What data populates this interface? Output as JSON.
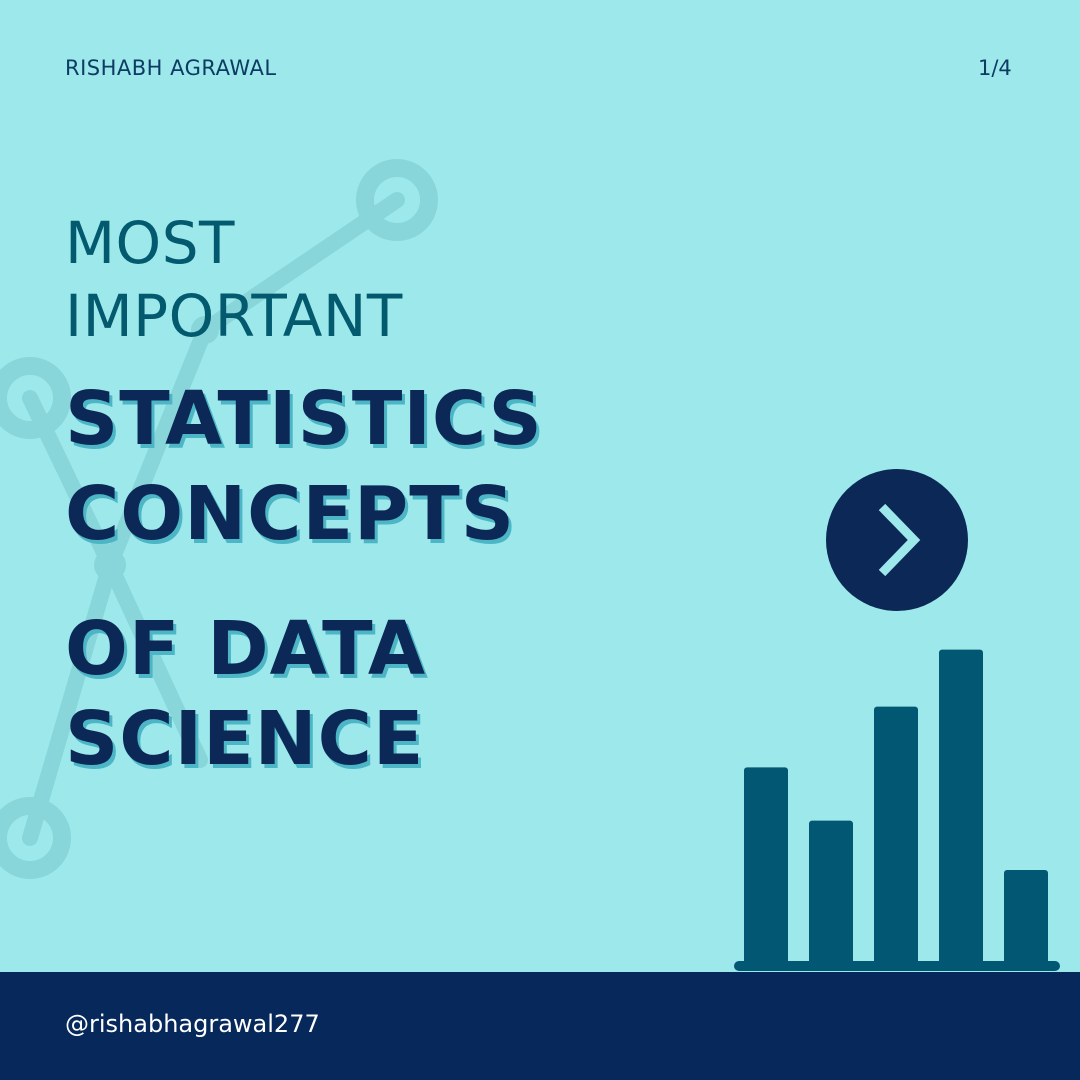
{
  "header": {
    "author": "RISHABH AGRAWAL",
    "page_counter": "1/4"
  },
  "title": {
    "line1": "MOST",
    "line2": "IMPORTANT",
    "line3": "STATISTICS",
    "line4": "CONCEPTS",
    "line5": "OF DATA",
    "line6": "SCIENCE"
  },
  "icons": {
    "next": "chevron-right-icon",
    "chart": "bar-chart-icon",
    "background": "network-graph-icon"
  },
  "bar_chart_levels": [
    0.52,
    0.38,
    0.68,
    0.83,
    0.25
  ],
  "footer": {
    "handle": "@rishabhagrawal277"
  },
  "colors": {
    "background": "#9de8ea",
    "title_light": "#03596e",
    "title_bold": "#0b2857",
    "title_shadow": "#4cb6c6",
    "button": "#0b2857",
    "bars": "#025872",
    "footer": "#06285a",
    "watermark": "#88d6da"
  }
}
